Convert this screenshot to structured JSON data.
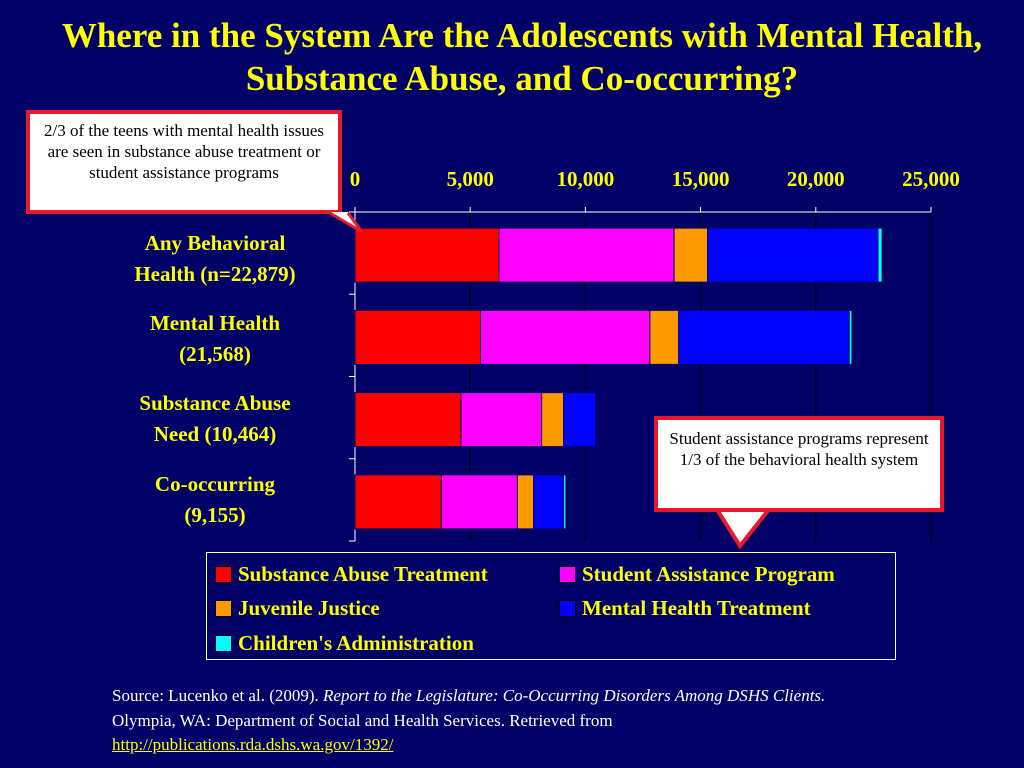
{
  "title": "Where in the System Are the Adolescents with Mental Health, Substance Abuse, and Co-occurring?",
  "callout_left": "2/3 of the teens with mental health issues are seen in substance abuse treatment or student assistance programs",
  "callout_right": "Student assistance programs represent 1/3 of the behavioral health system",
  "source": {
    "prefix": "Source: Lucenko et al. (2009). ",
    "italic": "Report to the Legislature: Co-Occurring Disorders Among DSHS Clients.",
    "suffix": " Olympia, WA: Department of Social and Health Services. Retrieved from ",
    "link": "http://publications.rda.dshs.wa.gov/1392/"
  },
  "colors": {
    "background": "#000066",
    "title": "#ffff00",
    "callout_border": "#e8192c"
  },
  "chart_data": {
    "type": "bar",
    "orientation": "horizontal",
    "stacked": true,
    "categories": [
      "Any Behavioral Health (n=22,879)",
      "Mental Health (21,568)",
      "Substance Abuse Need (10,464)",
      "Co-occurring (9,155)"
    ],
    "category_lines": [
      [
        "Any Behavioral",
        "Health (n=22,879)"
      ],
      [
        "Mental Health",
        "(21,568)"
      ],
      [
        "Substance Abuse",
        "Need (10,464)"
      ],
      [
        "Co-occurring",
        "(9,155)"
      ]
    ],
    "xlim": [
      0,
      25000
    ],
    "xticks": [
      0,
      5000,
      10000,
      15000,
      20000,
      25000
    ],
    "xtick_labels": [
      "0",
      "5,000",
      "10,000",
      "15,000",
      "20,000",
      "25,000"
    ],
    "grid": true,
    "legend_position": "bottom",
    "series": [
      {
        "name": "Substance Abuse Treatment",
        "color": "#ff0000",
        "values": [
          6250,
          5450,
          4600,
          3750
        ]
      },
      {
        "name": "Student Assistance Program",
        "color": "#ff00ff",
        "values": [
          7600,
          7350,
          3500,
          3300
        ]
      },
      {
        "name": "Juvenile Justice",
        "color": "#ff9900",
        "values": [
          1450,
          1250,
          950,
          700
        ]
      },
      {
        "name": "Mental Health Treatment",
        "color": "#0000ff",
        "values": [
          7400,
          7400,
          1400,
          1300
        ]
      },
      {
        "name": "Children's Administration",
        "color": "#00ffff",
        "values": [
          179,
          118,
          14,
          105
        ]
      }
    ]
  }
}
